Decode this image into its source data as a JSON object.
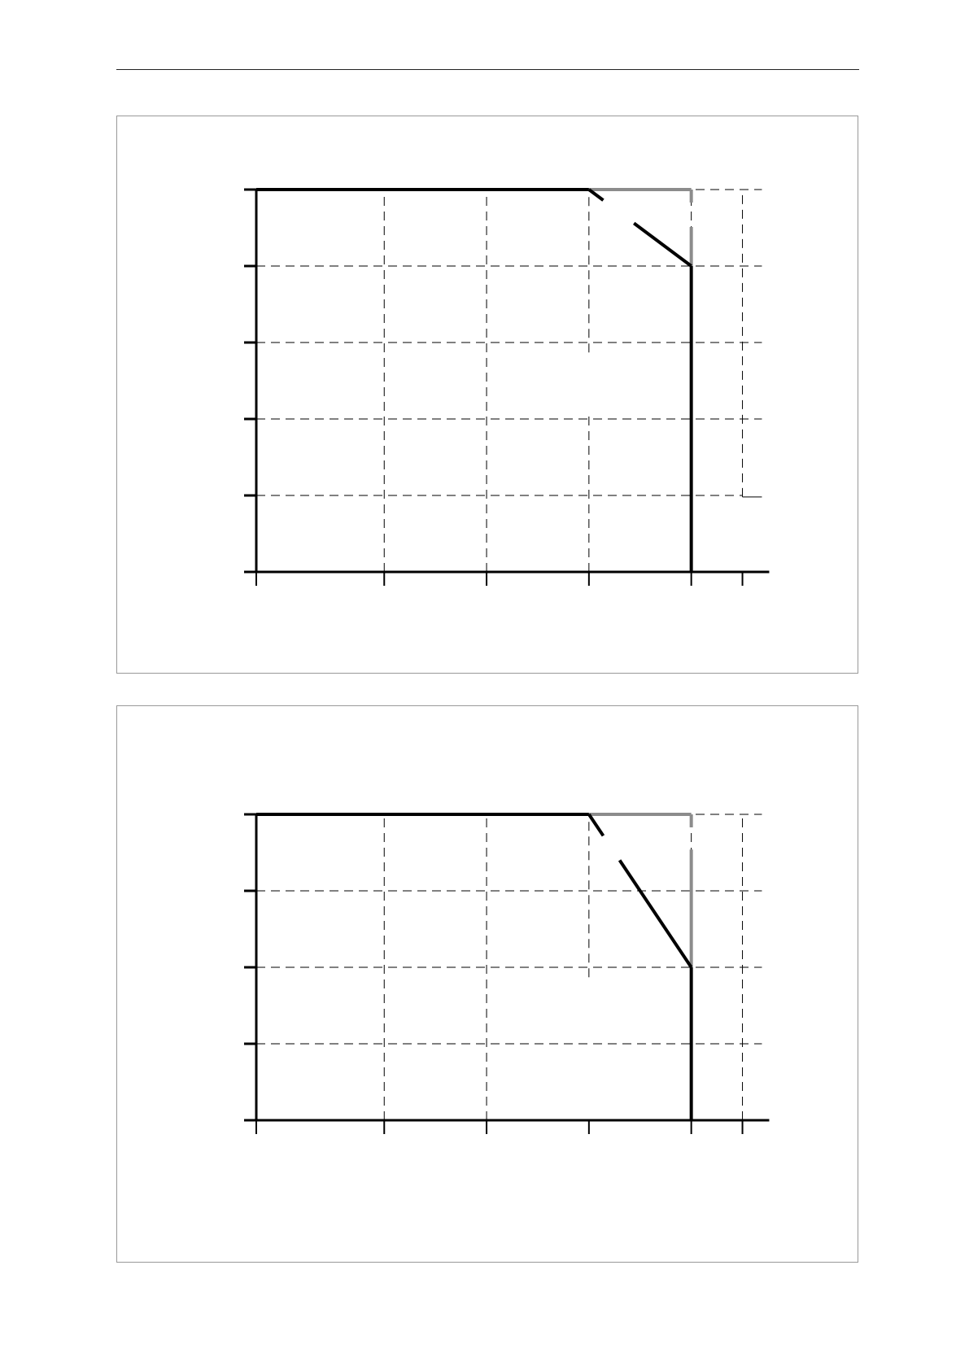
{
  "page": {
    "header_rule": true
  },
  "colors": {
    "primary_line": "#000000",
    "secondary_line": "#8c8c8c",
    "grid": "#000000",
    "frame": "#999999"
  },
  "chart_data": [
    {
      "type": "line",
      "title": "",
      "xlabel": "",
      "ylabel": "",
      "x_ticks": [
        0,
        1.25,
        2.25,
        3.25,
        4.25,
        4.75
      ],
      "y_ticks": [
        0,
        1,
        2,
        3,
        4,
        5
      ],
      "xlim": [
        0,
        4.94
      ],
      "ylim": [
        0,
        5
      ],
      "grid": "dashed",
      "series": [
        {
          "color": "#000000",
          "points": [
            [
              0,
              5
            ],
            [
              3.25,
              5
            ],
            [
              4.25,
              4
            ],
            [
              4.25,
              0
            ]
          ]
        },
        {
          "color": "#8c8c8c",
          "points": [
            [
              3.25,
              5
            ],
            [
              4.25,
              5
            ],
            [
              4.25,
              4
            ]
          ]
        }
      ]
    },
    {
      "type": "line",
      "title": "",
      "xlabel": "",
      "ylabel": "",
      "x_ticks": [
        0,
        1.25,
        2.25,
        3.25,
        4.25,
        4.75
      ],
      "y_ticks": [
        0,
        1,
        2,
        3,
        4
      ],
      "xlim": [
        0,
        4.94
      ],
      "ylim": [
        0,
        4
      ],
      "grid": "dashed",
      "series": [
        {
          "color": "#000000",
          "points": [
            [
              0,
              4
            ],
            [
              3.25,
              4
            ],
            [
              4.25,
              2
            ],
            [
              4.25,
              0
            ]
          ]
        },
        {
          "color": "#8c8c8c",
          "points": [
            [
              3.25,
              4
            ],
            [
              4.25,
              4
            ],
            [
              4.25,
              2
            ]
          ]
        }
      ]
    }
  ]
}
